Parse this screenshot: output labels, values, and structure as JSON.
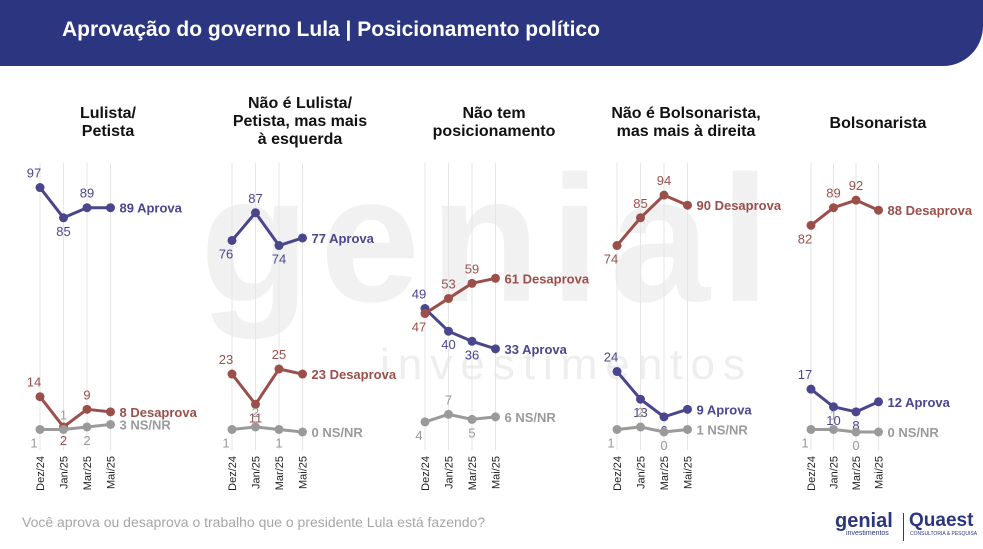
{
  "header": {
    "title": "Aprovação do governo Lula | Posicionamento político"
  },
  "watermark": {
    "main": "genial",
    "sub": "investimentos"
  },
  "footer": {
    "question": "Você aprova ou desaprova o trabalho que o presidente Lula está fazendo?"
  },
  "logos": {
    "genial": "genial",
    "genial_sub": "investimentos",
    "quaest": "Quaest",
    "quaest_sub": "CONSULTORIA & PESQUISA"
  },
  "colors": {
    "aprova": "#4a468e",
    "desaprova": "#9b4f4b",
    "ns": "#9a9a9a",
    "header": "#2b3580"
  },
  "chart_data": [
    {
      "type": "line",
      "title": "Lulista/ Petista",
      "categories": [
        "Dez/24",
        "Jan/25",
        "Mar/25",
        "Mai/25"
      ],
      "series": [
        {
          "name": "Aprova",
          "values": [
            97,
            85,
            89,
            89
          ],
          "end_label": "89 Aprova"
        },
        {
          "name": "Desaprova",
          "values": [
            14,
            2,
            9,
            8
          ],
          "end_label": "8 Desaprova"
        },
        {
          "name": "NS/NR",
          "values": [
            1,
            1,
            2,
            3
          ],
          "end_label": "3 NS/NR"
        }
      ]
    },
    {
      "type": "line",
      "title": "Não é Lulista/ Petista, mas mais à esquerda",
      "categories": [
        "Dez/24",
        "Jan/25",
        "Mar/25",
        "Mai/25"
      ],
      "series": [
        {
          "name": "Aprova",
          "values": [
            76,
            87,
            74,
            77
          ],
          "end_label": "77 Aprova"
        },
        {
          "name": "Desaprova",
          "values": [
            23,
            11,
            25,
            23
          ],
          "end_label": "23 Desaprova"
        },
        {
          "name": "NS/NR",
          "values": [
            1,
            2,
            1,
            0
          ],
          "end_label": "0 NS/NR"
        }
      ]
    },
    {
      "type": "line",
      "title": "Não tem posicionamento",
      "categories": [
        "Dez/24",
        "Jan/25",
        "Mar/25",
        "Mai/25"
      ],
      "series": [
        {
          "name": "Aprova",
          "values": [
            49,
            40,
            36,
            33
          ],
          "end_label": "33 Aprova"
        },
        {
          "name": "Desaprova",
          "values": [
            47,
            53,
            59,
            61
          ],
          "end_label": "61 Desaprova"
        },
        {
          "name": "NS/NR",
          "values": [
            4,
            7,
            5,
            6
          ],
          "end_label": "6 NS/NR"
        }
      ]
    },
    {
      "type": "line",
      "title": "Não é Bolsonarista, mas mais à direita",
      "categories": [
        "Dez/24",
        "Jan/25",
        "Mar/25",
        "Mai/25"
      ],
      "series": [
        {
          "name": "Aprova",
          "values": [
            24,
            13,
            6,
            9
          ],
          "end_label": "9 Aprova"
        },
        {
          "name": "Desaprova",
          "values": [
            74,
            85,
            94,
            90
          ],
          "end_label": "90 Desaprova"
        },
        {
          "name": "NS/NR",
          "values": [
            1,
            2,
            0,
            1
          ],
          "end_label": "1 NS/NR"
        }
      ]
    },
    {
      "type": "line",
      "title": "Bolsonarista",
      "categories": [
        "Dez/24",
        "Jan/25",
        "Mar/25",
        "Mai/25"
      ],
      "series": [
        {
          "name": "Aprova",
          "values": [
            17,
            10,
            8,
            12
          ],
          "end_label": "12 Aprova"
        },
        {
          "name": "Desaprova",
          "values": [
            82,
            89,
            92,
            88
          ],
          "end_label": "88 Desaprova"
        },
        {
          "name": "NS/NR",
          "values": [
            1,
            1,
            0,
            0
          ],
          "end_label": "0 NS/NR"
        }
      ]
    }
  ]
}
